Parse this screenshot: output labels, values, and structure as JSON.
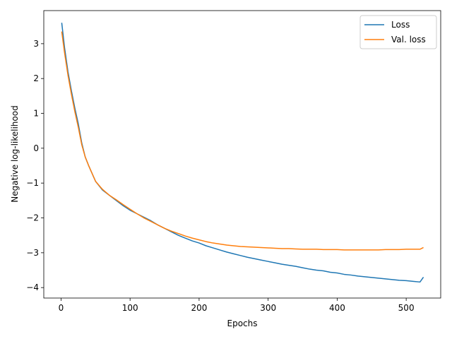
{
  "chart_data": {
    "type": "line",
    "title": "",
    "xlabel": "Epochs",
    "ylabel": "Negative log-likelihood",
    "xlim": [
      -25,
      550
    ],
    "ylim": [
      -4.3,
      3.95
    ],
    "xticks": [
      0,
      100,
      200,
      300,
      400,
      500
    ],
    "yticks": [
      -4,
      -3,
      -2,
      -1,
      0,
      1,
      2,
      3
    ],
    "xtick_labels": [
      "0",
      "100",
      "200",
      "300",
      "400",
      "500"
    ],
    "ytick_labels": [
      "−4",
      "−3",
      "−2",
      "−1",
      "0",
      "1",
      "2",
      "3"
    ],
    "grid": false,
    "legend_position": "upper-right",
    "series": [
      {
        "name": "Loss",
        "color": "#1f77b4",
        "x": [
          1,
          5,
          10,
          15,
          20,
          25,
          30,
          35,
          40,
          50,
          60,
          70,
          80,
          90,
          100,
          110,
          120,
          130,
          140,
          150,
          160,
          170,
          180,
          190,
          200,
          210,
          220,
          230,
          240,
          250,
          260,
          270,
          280,
          290,
          300,
          310,
          320,
          330,
          340,
          350,
          360,
          370,
          380,
          390,
          400,
          410,
          420,
          430,
          440,
          450,
          460,
          470,
          480,
          490,
          500,
          510,
          520,
          525
        ],
        "y": [
          3.6,
          2.9,
          2.2,
          1.65,
          1.15,
          0.7,
          0.15,
          -0.25,
          -0.5,
          -0.95,
          -1.2,
          -1.35,
          -1.5,
          -1.65,
          -1.78,
          -1.88,
          -1.98,
          -2.08,
          -2.2,
          -2.3,
          -2.4,
          -2.5,
          -2.58,
          -2.66,
          -2.72,
          -2.8,
          -2.86,
          -2.92,
          -2.98,
          -3.03,
          -3.08,
          -3.13,
          -3.17,
          -3.21,
          -3.25,
          -3.29,
          -3.33,
          -3.36,
          -3.39,
          -3.43,
          -3.47,
          -3.5,
          -3.52,
          -3.56,
          -3.58,
          -3.62,
          -3.64,
          -3.67,
          -3.69,
          -3.71,
          -3.73,
          -3.75,
          -3.77,
          -3.79,
          -3.8,
          -3.82,
          -3.84,
          -3.7
        ]
      },
      {
        "name": "Val. loss",
        "color": "#ff7f0e",
        "x": [
          1,
          5,
          10,
          15,
          20,
          25,
          30,
          35,
          40,
          50,
          60,
          70,
          80,
          90,
          100,
          110,
          120,
          130,
          140,
          150,
          160,
          170,
          180,
          190,
          200,
          210,
          220,
          230,
          240,
          250,
          260,
          270,
          280,
          290,
          300,
          310,
          320,
          330,
          340,
          350,
          360,
          370,
          380,
          390,
          400,
          410,
          420,
          430,
          440,
          450,
          460,
          470,
          480,
          490,
          500,
          510,
          520,
          525
        ],
        "y": [
          3.35,
          2.75,
          2.1,
          1.55,
          1.05,
          0.6,
          0.1,
          -0.25,
          -0.5,
          -0.95,
          -1.18,
          -1.35,
          -1.48,
          -1.62,
          -1.75,
          -1.88,
          -2.0,
          -2.1,
          -2.2,
          -2.3,
          -2.38,
          -2.45,
          -2.52,
          -2.58,
          -2.63,
          -2.68,
          -2.72,
          -2.75,
          -2.78,
          -2.8,
          -2.82,
          -2.83,
          -2.84,
          -2.85,
          -2.86,
          -2.87,
          -2.88,
          -2.88,
          -2.89,
          -2.9,
          -2.9,
          -2.9,
          -2.91,
          -2.91,
          -2.91,
          -2.92,
          -2.92,
          -2.92,
          -2.92,
          -2.92,
          -2.92,
          -2.91,
          -2.91,
          -2.91,
          -2.9,
          -2.9,
          -2.9,
          -2.85
        ]
      }
    ]
  }
}
